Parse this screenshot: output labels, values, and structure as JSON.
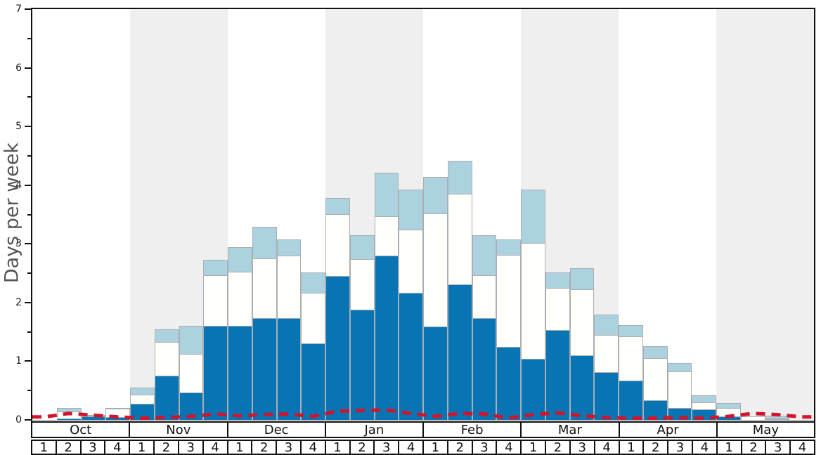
{
  "chart_data": {
    "type": "bar",
    "stacked": true,
    "title": "",
    "ylabel": "Days per week",
    "ylim": [
      0,
      7
    ],
    "ytick_labels": [
      "0",
      "1",
      "2",
      "3",
      "4",
      "5",
      "6",
      "7"
    ],
    "ytick_minor_step": 0.5,
    "grid": false,
    "legend": "none",
    "months": [
      "Oct",
      "Nov",
      "Dec",
      "Jan",
      "Feb",
      "Mar",
      "Apr",
      "May"
    ],
    "week_labels": [
      "1",
      "2",
      "3",
      "4"
    ],
    "shaded_month_indices": [
      1,
      3,
      5,
      7
    ],
    "categories": [
      "Oct 1",
      "Oct 2",
      "Oct 3",
      "Oct 4",
      "Nov 1",
      "Nov 2",
      "Nov 3",
      "Nov 4",
      "Dec 1",
      "Dec 2",
      "Dec 3",
      "Dec 4",
      "Jan 1",
      "Jan 2",
      "Jan 3",
      "Jan 4",
      "Feb 1",
      "Feb 2",
      "Feb 3",
      "Feb 4",
      "Mar 1",
      "Mar 2",
      "Mar 3",
      "Mar 4",
      "Apr 1",
      "Apr 2",
      "Apr 3",
      "Apr 4",
      "May 1",
      "May 2",
      "May 3",
      "May 4"
    ],
    "series": [
      {
        "name": "dark-blue",
        "color": "#0874b4",
        "stack_top": [
          0,
          0.02,
          0.06,
          0.05,
          0.27,
          0.76,
          0.47,
          1.6,
          1.6,
          1.74,
          1.74,
          1.31,
          2.45,
          1.88,
          2.8,
          2.17,
          1.59,
          2.31,
          1.73,
          1.25,
          1.04,
          1.53,
          1.1,
          0.81,
          0.67,
          0.33,
          0.2,
          0.18,
          0.06,
          0,
          0.01,
          0
        ]
      },
      {
        "name": "white",
        "color": "#fffffb",
        "stack_top": [
          0,
          0.14,
          0.07,
          0.19,
          0.43,
          1.33,
          1.12,
          2.46,
          2.53,
          2.75,
          2.8,
          2.17,
          3.51,
          2.74,
          3.47,
          3.24,
          3.52,
          3.85,
          2.46,
          2.81,
          3.02,
          2.25,
          2.23,
          1.45,
          1.42,
          1.05,
          0.83,
          0.3,
          0.2,
          0.06,
          0.03,
          0
        ]
      },
      {
        "name": "light-blue",
        "color": "#acd2e0",
        "stack_top": [
          0,
          0.21,
          0.08,
          0.2,
          0.55,
          1.54,
          1.6,
          2.73,
          2.94,
          3.29,
          3.08,
          2.51,
          3.78,
          3.15,
          4.21,
          3.93,
          4.14,
          4.41,
          3.15,
          3.07,
          3.93,
          2.51,
          2.58,
          1.8,
          1.61,
          1.26,
          0.97,
          0.42,
          0.29,
          0.06,
          0.07,
          0
        ]
      }
    ],
    "line_series": {
      "name": "red-dashed",
      "color": "#d1152d",
      "style": "dashed",
      "values": [
        0.05,
        0.11,
        0.08,
        0.05,
        0.03,
        0.04,
        0.06,
        0.1,
        0.07,
        0.09,
        0.1,
        0.06,
        0.15,
        0.16,
        0.17,
        0.11,
        0.06,
        0.11,
        0.1,
        0.03,
        0.09,
        0.12,
        0.07,
        0.04,
        0.03,
        0.03,
        0.04,
        0.03,
        0.06,
        0.11,
        0.09,
        0.05
      ]
    },
    "colors": {
      "band": "#efeff0",
      "bar_border": "#a9aeb2",
      "axis": "#111111",
      "baseline": "#999999",
      "ylabel_text": "#555555",
      "tick_text": "#1a1a1a"
    }
  }
}
